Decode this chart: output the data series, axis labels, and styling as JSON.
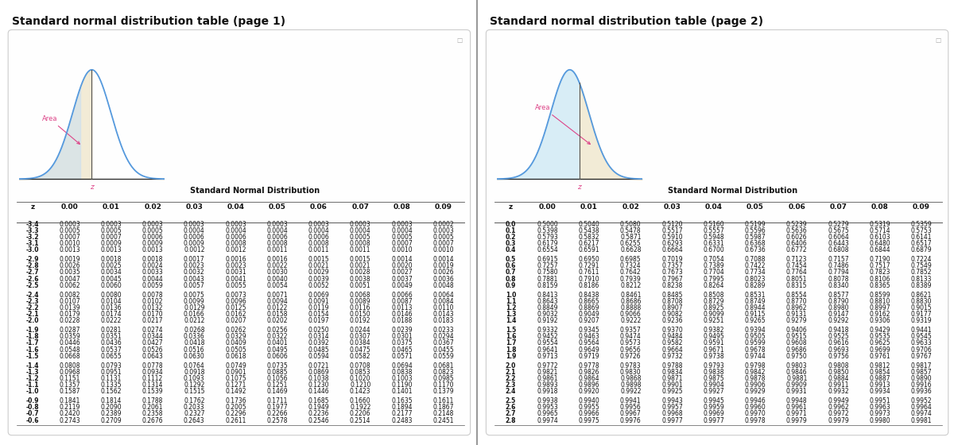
{
  "page1_title": "Standard normal distribution table (page 1)",
  "page2_title": "Standard normal distribution table (page 2)",
  "table_subtitle": "Standard Normal Distribution",
  "col_headers": [
    "0.00",
    "0.01",
    "0.02",
    "0.03",
    "0.04",
    "0.05",
    "0.06",
    "0.07",
    "0.08",
    "0.09"
  ],
  "page1_rows": [
    [
      "-3.4",
      "0.0003",
      "0.0003",
      "0.0003",
      "0.0003",
      "0.0003",
      "0.0003",
      "0.0003",
      "0.0003",
      "0.0003",
      "0.0002"
    ],
    [
      "-3.3",
      "0.0005",
      "0.0005",
      "0.0005",
      "0.0004",
      "0.0004",
      "0.0004",
      "0.0004",
      "0.0004",
      "0.0004",
      "0.0003"
    ],
    [
      "-3.2",
      "0.0007",
      "0.0007",
      "0.0006",
      "0.0006",
      "0.0006",
      "0.0006",
      "0.0006",
      "0.0005",
      "0.0005",
      "0.0005"
    ],
    [
      "-3.1",
      "0.0010",
      "0.0009",
      "0.0009",
      "0.0009",
      "0.0008",
      "0.0008",
      "0.0008",
      "0.0008",
      "0.0007",
      "0.0007"
    ],
    [
      "-3.0",
      "0.0013",
      "0.0013",
      "0.0013",
      "0.0012",
      "0.0012",
      "0.0011",
      "0.0011",
      "0.0011",
      "0.0010",
      "0.0010"
    ],
    [
      "-2.9",
      "0.0019",
      "0.0018",
      "0.0018",
      "0.0017",
      "0.0016",
      "0.0016",
      "0.0015",
      "0.0015",
      "0.0014",
      "0.0014"
    ],
    [
      "-2.8",
      "0.0026",
      "0.0025",
      "0.0024",
      "0.0023",
      "0.0023",
      "0.0022",
      "0.0021",
      "0.0021",
      "0.0020",
      "0.0019"
    ],
    [
      "-2.7",
      "0.0035",
      "0.0034",
      "0.0033",
      "0.0032",
      "0.0031",
      "0.0030",
      "0.0029",
      "0.0028",
      "0.0027",
      "0.0026"
    ],
    [
      "-2.6",
      "0.0047",
      "0.0045",
      "0.0044",
      "0.0043",
      "0.0041",
      "0.0040",
      "0.0039",
      "0.0038",
      "0.0037",
      "0.0036"
    ],
    [
      "-2.5",
      "0.0062",
      "0.0060",
      "0.0059",
      "0.0057",
      "0.0055",
      "0.0054",
      "0.0052",
      "0.0051",
      "0.0049",
      "0.0048"
    ],
    [
      "-2.4",
      "0.0082",
      "0.0080",
      "0.0078",
      "0.0075",
      "0.0073",
      "0.0071",
      "0.0069",
      "0.0068",
      "0.0066",
      "0.0064"
    ],
    [
      "-2.3",
      "0.0107",
      "0.0104",
      "0.0102",
      "0.0099",
      "0.0096",
      "0.0094",
      "0.0091",
      "0.0089",
      "0.0087",
      "0.0084"
    ],
    [
      "-2.2",
      "0.0139",
      "0.0136",
      "0.0132",
      "0.0129",
      "0.0125",
      "0.0122",
      "0.0119",
      "0.0116",
      "0.0113",
      "0.0110"
    ],
    [
      "-2.1",
      "0.0179",
      "0.0174",
      "0.0170",
      "0.0166",
      "0.0162",
      "0.0158",
      "0.0154",
      "0.0150",
      "0.0146",
      "0.0143"
    ],
    [
      "-2.0",
      "0.0228",
      "0.0222",
      "0.0217",
      "0.0212",
      "0.0207",
      "0.0202",
      "0.0197",
      "0.0192",
      "0.0188",
      "0.0183"
    ],
    [
      "-1.9",
      "0.0287",
      "0.0281",
      "0.0274",
      "0.0268",
      "0.0262",
      "0.0256",
      "0.0250",
      "0.0244",
      "0.0239",
      "0.0233"
    ],
    [
      "-1.8",
      "0.0359",
      "0.0351",
      "0.0344",
      "0.0336",
      "0.0329",
      "0.0322",
      "0.0314",
      "0.0307",
      "0.0301",
      "0.0294"
    ],
    [
      "-1.7",
      "0.0446",
      "0.0436",
      "0.0427",
      "0.0418",
      "0.0409",
      "0.0401",
      "0.0392",
      "0.0384",
      "0.0375",
      "0.0367"
    ],
    [
      "-1.6",
      "0.0548",
      "0.0537",
      "0.0526",
      "0.0516",
      "0.0505",
      "0.0495",
      "0.0485",
      "0.0475",
      "0.0465",
      "0.0455"
    ],
    [
      "-1.5",
      "0.0668",
      "0.0655",
      "0.0643",
      "0.0630",
      "0.0618",
      "0.0606",
      "0.0594",
      "0.0582",
      "0.0571",
      "0.0559"
    ],
    [
      "-1.4",
      "0.0808",
      "0.0793",
      "0.0778",
      "0.0764",
      "0.0749",
      "0.0735",
      "0.0721",
      "0.0708",
      "0.0694",
      "0.0681"
    ],
    [
      "-1.3",
      "0.0968",
      "0.0951",
      "0.0934",
      "0.0918",
      "0.0901",
      "0.0885",
      "0.0869",
      "0.0853",
      "0.0838",
      "0.0823"
    ],
    [
      "-1.2",
      "0.1151",
      "0.1131",
      "0.1112",
      "0.1093",
      "0.1075",
      "0.1056",
      "0.1038",
      "0.1020",
      "0.1003",
      "0.0985"
    ],
    [
      "-1.1",
      "0.1357",
      "0.1335",
      "0.1314",
      "0.1292",
      "0.1271",
      "0.1251",
      "0.1230",
      "0.1210",
      "0.1190",
      "0.1170"
    ],
    [
      "-1.0",
      "0.1587",
      "0.1562",
      "0.1539",
      "0.1515",
      "0.1492",
      "0.1469",
      "0.1446",
      "0.1423",
      "0.1401",
      "0.1379"
    ],
    [
      "-0.9",
      "0.1841",
      "0.1814",
      "0.1788",
      "0.1762",
      "0.1736",
      "0.1711",
      "0.1685",
      "0.1660",
      "0.1635",
      "0.1611"
    ],
    [
      "-0.8",
      "0.2119",
      "0.2090",
      "0.2061",
      "0.2033",
      "0.2005",
      "0.1977",
      "0.1949",
      "0.1922",
      "0.1894",
      "0.1867"
    ],
    [
      "-0.7",
      "0.2420",
      "0.2389",
      "0.2358",
      "0.2327",
      "0.2296",
      "0.2266",
      "0.2236",
      "0.2206",
      "0.2177",
      "0.2148"
    ],
    [
      "-0.6",
      "0.2743",
      "0.2709",
      "0.2676",
      "0.2643",
      "0.2611",
      "0.2578",
      "0.2546",
      "0.2514",
      "0.2483",
      "0.2451"
    ]
  ],
  "page2_rows": [
    [
      "0.0",
      "0.5000",
      "0.5040",
      "0.5080",
      "0.5120",
      "0.5160",
      "0.5199",
      "0.5239",
      "0.5279",
      "0.5319",
      "0.5359"
    ],
    [
      "0.1",
      "0.5398",
      "0.5438",
      "0.5478",
      "0.5517",
      "0.5557",
      "0.5596",
      "0.5636",
      "0.5675",
      "0.5714",
      "0.5753"
    ],
    [
      "0.2",
      "0.5793",
      "0.5832",
      "0.5871",
      "0.5910",
      "0.5948",
      "0.5987",
      "0.6026",
      "0.6064",
      "0.6103",
      "0.6141"
    ],
    [
      "0.3",
      "0.6179",
      "0.6217",
      "0.6255",
      "0.6293",
      "0.6331",
      "0.6368",
      "0.6406",
      "0.6443",
      "0.6480",
      "0.6517"
    ],
    [
      "0.4",
      "0.6554",
      "0.6591",
      "0.6628",
      "0.6664",
      "0.6700",
      "0.6736",
      "0.6772",
      "0.6808",
      "0.6844",
      "0.6879"
    ],
    [
      "0.5",
      "0.6915",
      "0.6950",
      "0.6985",
      "0.7019",
      "0.7054",
      "0.7088",
      "0.7123",
      "0.7157",
      "0.7190",
      "0.7224"
    ],
    [
      "0.6",
      "0.7257",
      "0.7291",
      "0.7324",
      "0.7357",
      "0.7389",
      "0.7422",
      "0.7454",
      "0.7486",
      "0.7517",
      "0.7549"
    ],
    [
      "0.7",
      "0.7580",
      "0.7611",
      "0.7642",
      "0.7673",
      "0.7704",
      "0.7734",
      "0.7764",
      "0.7794",
      "0.7823",
      "0.7852"
    ],
    [
      "0.8",
      "0.7881",
      "0.7910",
      "0.7939",
      "0.7967",
      "0.7995",
      "0.8023",
      "0.8051",
      "0.8078",
      "0.8106",
      "0.8133"
    ],
    [
      "0.9",
      "0.8159",
      "0.8186",
      "0.8212",
      "0.8238",
      "0.8264",
      "0.8289",
      "0.8315",
      "0.8340",
      "0.8365",
      "0.8389"
    ],
    [
      "1.0",
      "0.8413",
      "0.8438",
      "0.8461",
      "0.8485",
      "0.8508",
      "0.8531",
      "0.8554",
      "0.8577",
      "0.8599",
      "0.8621"
    ],
    [
      "1.1",
      "0.8643",
      "0.8665",
      "0.8686",
      "0.8708",
      "0.8729",
      "0.8749",
      "0.8770",
      "0.8790",
      "0.8810",
      "0.8830"
    ],
    [
      "1.2",
      "0.8849",
      "0.8869",
      "0.8888",
      "0.8907",
      "0.8925",
      "0.8944",
      "0.8962",
      "0.8980",
      "0.8997",
      "0.9015"
    ],
    [
      "1.3",
      "0.9032",
      "0.9049",
      "0.9066",
      "0.9082",
      "0.9099",
      "0.9115",
      "0.9131",
      "0.9147",
      "0.9162",
      "0.9177"
    ],
    [
      "1.4",
      "0.9192",
      "0.9207",
      "0.9222",
      "0.9236",
      "0.9251",
      "0.9265",
      "0.9279",
      "0.9292",
      "0.9306",
      "0.9319"
    ],
    [
      "1.5",
      "0.9332",
      "0.9345",
      "0.9357",
      "0.9370",
      "0.9382",
      "0.9394",
      "0.9406",
      "0.9418",
      "0.9429",
      "0.9441"
    ],
    [
      "1.6",
      "0.9452",
      "0.9463",
      "0.9474",
      "0.9484",
      "0.9495",
      "0.9505",
      "0.9515",
      "0.9525",
      "0.9535",
      "0.9545"
    ],
    [
      "1.7",
      "0.9554",
      "0.9564",
      "0.9573",
      "0.9582",
      "0.9591",
      "0.9599",
      "0.9608",
      "0.9616",
      "0.9625",
      "0.9633"
    ],
    [
      "1.8",
      "0.9641",
      "0.9649",
      "0.9656",
      "0.9664",
      "0.9671",
      "0.9678",
      "0.9686",
      "0.9693",
      "0.9699",
      "0.9706"
    ],
    [
      "1.9",
      "0.9713",
      "0.9719",
      "0.9726",
      "0.9732",
      "0.9738",
      "0.9744",
      "0.9750",
      "0.9756",
      "0.9761",
      "0.9767"
    ],
    [
      "2.0",
      "0.9772",
      "0.9778",
      "0.9783",
      "0.9788",
      "0.9793",
      "0.9798",
      "0.9803",
      "0.9808",
      "0.9812",
      "0.9817"
    ],
    [
      "2.1",
      "0.9821",
      "0.9826",
      "0.9830",
      "0.9834",
      "0.9838",
      "0.9842",
      "0.9846",
      "0.9850",
      "0.9854",
      "0.9857"
    ],
    [
      "2.2",
      "0.9861",
      "0.9864",
      "0.9868",
      "0.9871",
      "0.9875",
      "0.9878",
      "0.9881",
      "0.9884",
      "0.9887",
      "0.9890"
    ],
    [
      "2.3",
      "0.9893",
      "0.9896",
      "0.9898",
      "0.9901",
      "0.9904",
      "0.9906",
      "0.9909",
      "0.9911",
      "0.9913",
      "0.9916"
    ],
    [
      "2.4",
      "0.9918",
      "0.9920",
      "0.9922",
      "0.9925",
      "0.9927",
      "0.9929",
      "0.9931",
      "0.9932",
      "0.9934",
      "0.9936"
    ],
    [
      "2.5",
      "0.9938",
      "0.9940",
      "0.9941",
      "0.9943",
      "0.9945",
      "0.9946",
      "0.9948",
      "0.9949",
      "0.9951",
      "0.9952"
    ],
    [
      "2.6",
      "0.9953",
      "0.9955",
      "0.9956",
      "0.9957",
      "0.9959",
      "0.9960",
      "0.9961",
      "0.9962",
      "0.9963",
      "0.9964"
    ],
    [
      "2.7",
      "0.9965",
      "0.9966",
      "0.9967",
      "0.9968",
      "0.9969",
      "0.9970",
      "0.9971",
      "0.9972",
      "0.9973",
      "0.9974"
    ],
    [
      "2.8",
      "0.9974",
      "0.9975",
      "0.9976",
      "0.9977",
      "0.9977",
      "0.9978",
      "0.9979",
      "0.9979",
      "0.9980",
      "0.9981"
    ]
  ],
  "bg_color": "#ffffff",
  "curve_color": "#5599dd",
  "fill_color_page1_main": "#f0e8d0",
  "fill_color_page1_left": "#cce0f0",
  "fill_color_page2_left": "#cce8f4",
  "fill_color_page2_right": "#f0e8d0",
  "area_arrow_color": "#dd4488",
  "vline_color": "#555555",
  "z_label_color": "#dd4488",
  "title_fontsize": 10,
  "subtitle_fontsize": 7,
  "header_fontsize": 6.5,
  "data_fontsize": 5.5,
  "panel_border_color": "#cccccc",
  "panel_bg_color": "#fefefe",
  "divider_color": "#999999"
}
